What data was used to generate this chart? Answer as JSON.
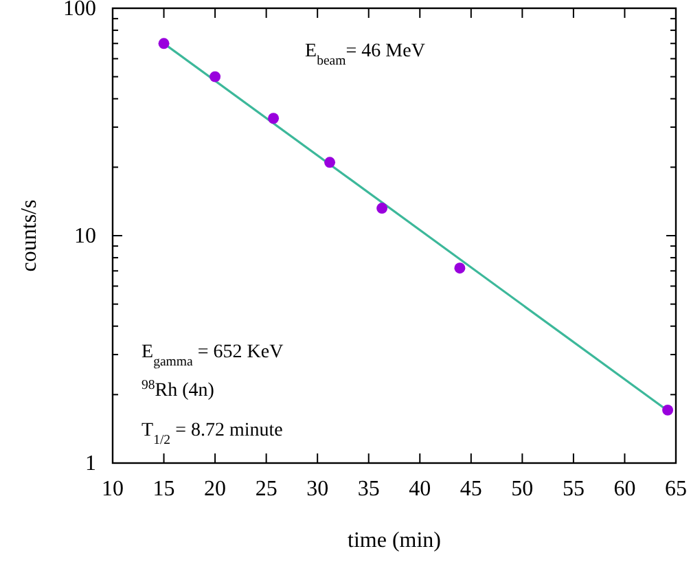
{
  "chart_data": {
    "type": "scatter",
    "xlabel": "time (min)",
    "ylabel": "counts/s",
    "log": "y",
    "xlim": [
      10,
      65
    ],
    "xticks": [
      10,
      15,
      20,
      25,
      30,
      35,
      40,
      45,
      50,
      55,
      60,
      65
    ],
    "ylim": [
      1,
      100
    ],
    "yticks": [
      1,
      {
        "value": 2,
        "label": null
      },
      {
        "value": 3,
        "label": null
      },
      {
        "value": 4,
        "label": null
      },
      {
        "value": 5,
        "label": null
      },
      {
        "value": 6,
        "label": null
      },
      {
        "value": 7,
        "label": null
      },
      {
        "value": 8,
        "label": null
      },
      {
        "value": 9,
        "label": null
      },
      10,
      {
        "value": 20,
        "label": null
      },
      {
        "value": 30,
        "label": null
      },
      {
        "value": 40,
        "label": null
      },
      {
        "value": 50,
        "label": null
      },
      {
        "value": 60,
        "label": null
      },
      {
        "value": 70,
        "label": null
      },
      {
        "value": 80,
        "label": null
      },
      {
        "value": 90,
        "label": null
      },
      100
    ],
    "series": [
      {
        "marker": "circle",
        "color": "#9900dd",
        "x": [
          15,
          20,
          25.7,
          31.2,
          36.3,
          43.9,
          64.2
        ],
        "values": [
          70,
          50,
          32.8,
          21,
          13.2,
          7.2,
          1.71
        ]
      },
      {
        "type": "line",
        "color": "#3cb89a",
        "x": [
          15,
          64.2
        ],
        "values": [
          70,
          1.7
        ]
      }
    ],
    "annotations": [
      "E$_{beam}$= 46 MeV",
      "E$_{gamma}$ = 652 KeV",
      "$^{98}$Rh (4n)",
      "T$_{1/2}$ = 8.72 minute"
    ]
  }
}
